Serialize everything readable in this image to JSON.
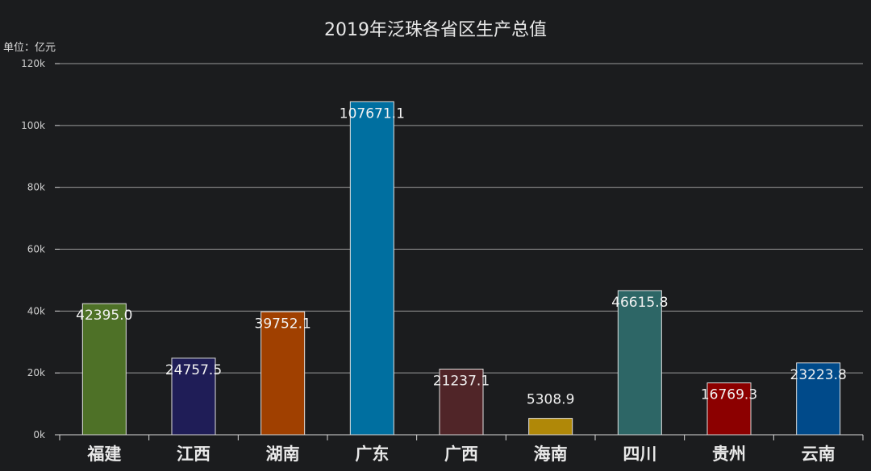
{
  "chart_data": {
    "type": "bar",
    "title": "2019年泛珠各省区生产总值",
    "unit_label": "单位：亿元",
    "categories": [
      "福建",
      "江西",
      "湖南",
      "广东",
      "广西",
      "海南",
      "四川",
      "贵州",
      "云南"
    ],
    "values": [
      42395.0,
      24757.5,
      39752.1,
      107671.1,
      21237.1,
      5308.9,
      46615.8,
      16769.3,
      23223.8
    ],
    "value_labels": [
      "42395.0",
      "24757.5",
      "39752.1",
      "107671.1",
      "21237.1",
      "5308.9",
      "46615.8",
      "16769.3",
      "23223.8"
    ],
    "colors": [
      "#4e7127",
      "#1f1d57",
      "#a04000",
      "#006fa0",
      "#502528",
      "#b08808",
      "#2d6666",
      "#8c0000",
      "#004a8a"
    ],
    "ylim": [
      0,
      120000
    ],
    "yticks": [
      0,
      20000,
      40000,
      60000,
      80000,
      100000,
      120000
    ],
    "ytick_labels": [
      "0k",
      "20k",
      "40k",
      "60k",
      "80k",
      "100k",
      "120k"
    ],
    "grid": true,
    "legend": "none"
  }
}
